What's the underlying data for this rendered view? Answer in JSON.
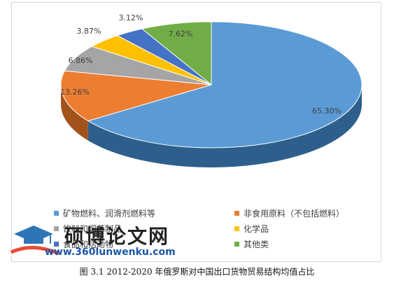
{
  "chart_data": {
    "type": "pie",
    "title": "",
    "slices": [
      {
        "label": "矿物燃料、润滑剂燃料等",
        "value": 65.3,
        "value_label": "65.30%",
        "color": "#5b9bd5",
        "side": "#2e5f8c"
      },
      {
        "label": "非食用原料（不包括燃料）",
        "value": 13.26,
        "value_label": "13.26%",
        "color": "#ed7d31",
        "side": "#a2531c"
      },
      {
        "label": "饮料和烟草制品",
        "value": 6.86,
        "value_label": "6.86%",
        "color": "#a5a5a5",
        "side": "#6e6e6e"
      },
      {
        "label": "化学品",
        "value": 3.87,
        "value_label": "3.87%",
        "color": "#ffc000",
        "side": "#b38600"
      },
      {
        "label": "食品和活动物",
        "value": 3.12,
        "value_label": "3.12%",
        "color": "#4472c4",
        "side": "#2a4a86"
      },
      {
        "label": "其他类",
        "value": 7.62,
        "value_label": "7.62%",
        "color": "#70ad47",
        "side": "#4b7a2e"
      }
    ],
    "legend_placement": "bottom",
    "legend_order": [
      0,
      1,
      2,
      3,
      4,
      5
    ]
  },
  "watermark": {
    "text": "硕博论文网",
    "url": "www.360lunwenku.com"
  },
  "caption": "图 3.1    2012-2020 年俄罗斯对中国出口货物贸易结构均值占比"
}
